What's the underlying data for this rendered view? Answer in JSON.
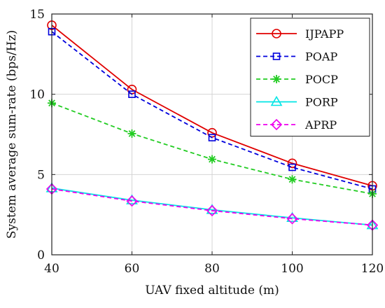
{
  "chart_data": {
    "type": "line",
    "title": "",
    "xlabel": "UAV fixed altitude (m)",
    "ylabel": "System average sum-rate (bps/Hz)",
    "x": [
      40,
      60,
      80,
      100,
      120
    ],
    "xlim": [
      40,
      120
    ],
    "ylim": [
      0,
      15
    ],
    "xticks": [
      40,
      60,
      80,
      100,
      120
    ],
    "yticks": [
      0,
      5,
      10,
      15
    ],
    "grid": true,
    "legend_position": "top-right",
    "series": [
      {
        "name": "IJPAPP",
        "values": [
          14.3,
          10.3,
          7.6,
          5.7,
          4.3
        ],
        "color": "#e00000",
        "dash": "solid",
        "marker": "circle"
      },
      {
        "name": "POAP",
        "values": [
          13.9,
          10.0,
          7.3,
          5.45,
          4.1
        ],
        "color": "#0000dd",
        "dash": "dashed",
        "marker": "square"
      },
      {
        "name": "POCP",
        "values": [
          9.45,
          7.55,
          5.95,
          4.7,
          3.8
        ],
        "color": "#22cc22",
        "dash": "dashed",
        "marker": "asterisk"
      },
      {
        "name": "PORP",
        "values": [
          4.15,
          3.4,
          2.8,
          2.3,
          1.85
        ],
        "color": "#00e5e5",
        "dash": "solid",
        "marker": "triangle"
      },
      {
        "name": "APRP",
        "values": [
          4.1,
          3.35,
          2.75,
          2.25,
          1.85
        ],
        "color": "#ee00ee",
        "dash": "dashed",
        "marker": "diamond"
      }
    ]
  }
}
